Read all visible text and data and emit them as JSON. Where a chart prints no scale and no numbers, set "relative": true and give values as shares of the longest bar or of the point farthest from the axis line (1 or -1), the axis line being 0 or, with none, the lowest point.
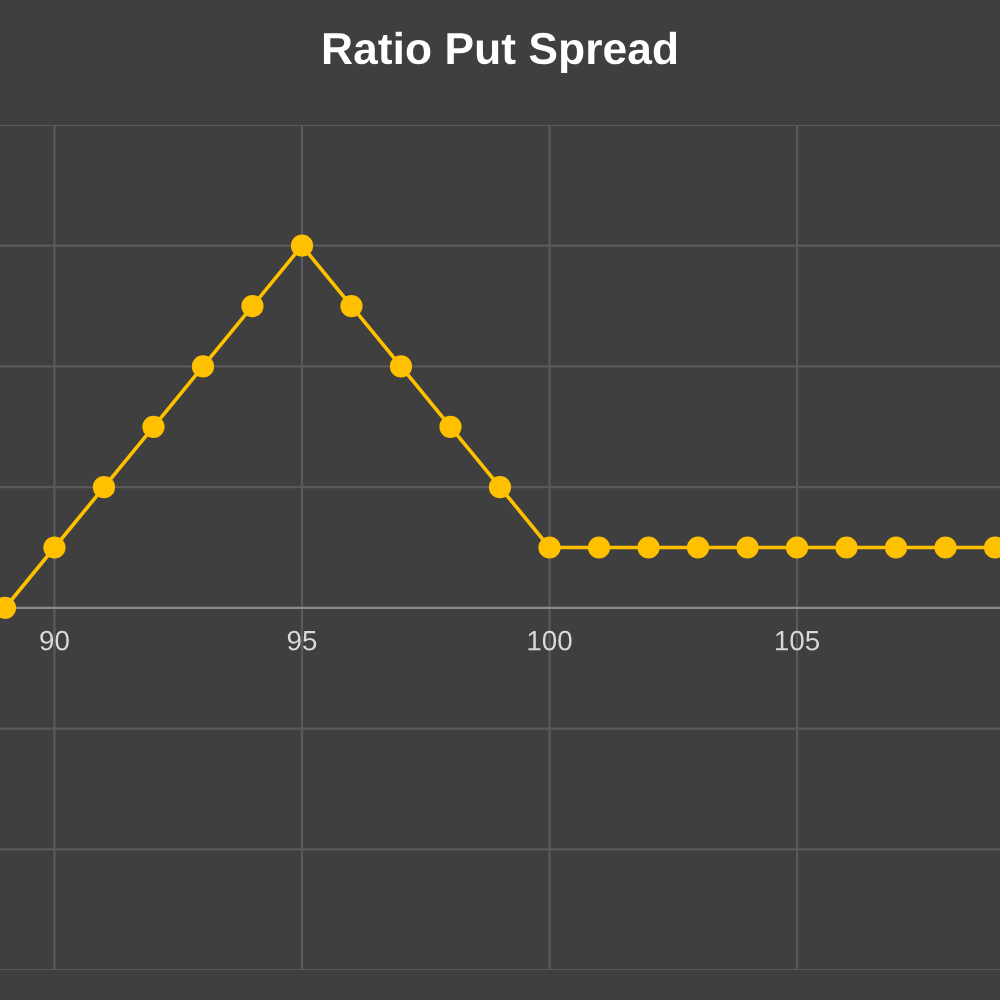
{
  "chart_data": {
    "type": "line",
    "title": "Ratio Put Spread",
    "relative": true,
    "x": [
      89,
      90,
      91,
      92,
      93,
      94,
      95,
      96,
      97,
      98,
      99,
      100,
      101,
      102,
      103,
      104,
      105,
      106,
      107,
      108,
      109
    ],
    "series": [
      {
        "color": "#ffc000",
        "values": [
          0,
          0.1667,
          0.3333,
          0.5,
          0.6667,
          0.8333,
          1,
          0.8333,
          0.6667,
          0.5,
          0.3333,
          0.1667,
          0.1667,
          0.1667,
          0.1667,
          0.1667,
          0.1667,
          0.1667,
          0.1667,
          0.1667,
          0.1667
        ]
      }
    ],
    "xlim": [
      88.9,
      109.1
    ],
    "xticks": [
      90,
      95,
      100,
      105
    ],
    "grid": true,
    "marker": "circle",
    "line_style": "solid"
  }
}
